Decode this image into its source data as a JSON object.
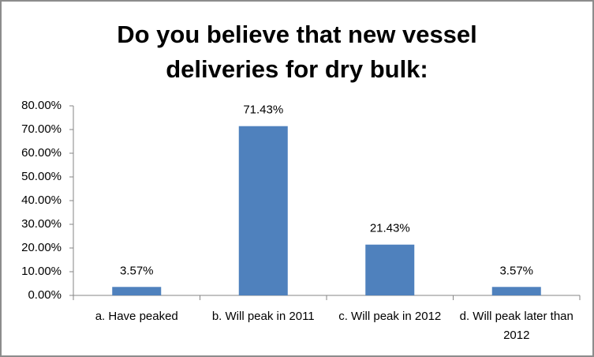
{
  "chart_data": {
    "type": "bar",
    "title": "Do you believe that new vessel deliveries for dry bulk:",
    "categories": [
      "a. Have peaked",
      "b. Will peak in 2011",
      "c. Will peak in 2012",
      "d. Will peak later than 2012"
    ],
    "values": [
      3.57,
      71.43,
      21.43,
      3.57
    ],
    "value_labels": [
      "3.57%",
      "71.43%",
      "21.43%",
      "3.57%"
    ],
    "color": "#4f81bd",
    "ylim": [
      0,
      80
    ],
    "yticks": [
      {
        "value": 0,
        "label": "0.00%"
      },
      {
        "value": 10,
        "label": "10.00%"
      },
      {
        "value": 20,
        "label": "20.00%"
      },
      {
        "value": 30,
        "label": "30.00%"
      },
      {
        "value": 40,
        "label": "40.00%"
      },
      {
        "value": 50,
        "label": "50.00%"
      },
      {
        "value": 60,
        "label": "60.00%"
      },
      {
        "value": 70,
        "label": "70.00%"
      },
      {
        "value": 80,
        "label": "80.00%"
      }
    ],
    "grid": false
  }
}
